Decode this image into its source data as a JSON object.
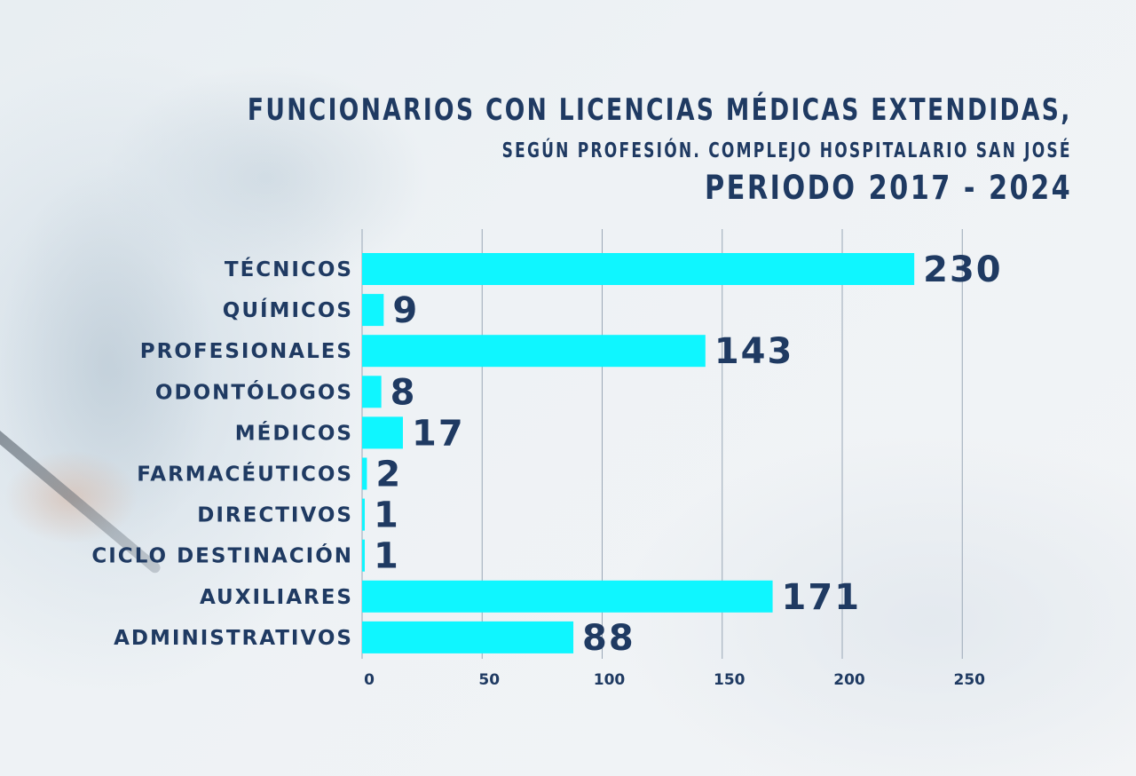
{
  "header": {
    "title_line1": "FUNCIONARIOS CON LICENCIAS MÉDICAS EXTENDIDAS,",
    "title_line2": "SEGÚN PROFESIÓN. COMPLEJO HOSPITALARIO SAN JOSÉ",
    "title_line3": "PERIODO 2017 - 2024"
  },
  "colors": {
    "bar": "#0ff6ff",
    "text": "#1f3a62",
    "grid": "#9aa7b6"
  },
  "chart_data": {
    "type": "bar",
    "orientation": "horizontal",
    "title": "FUNCIONARIOS CON LICENCIAS MÉDICAS EXTENDIDAS, SEGÚN PROFESIÓN. COMPLEJO HOSPITALARIO SAN JOSÉ PERIODO 2017 - 2024",
    "categories": [
      "TÉCNICOS",
      "QUÍMICOS",
      "PROFESIONALES",
      "ODONTÓLOGOS",
      "MÉDICOS",
      "FARMACÉUTICOS",
      "DIRECTIVOS",
      "CICLO DESTINACIÓN",
      "AUXILIARES",
      "ADMINISTRATIVOS"
    ],
    "values": [
      230,
      9,
      143,
      8,
      17,
      2,
      1,
      1,
      171,
      88
    ],
    "xticks": [
      0,
      50,
      100,
      150,
      200,
      250
    ],
    "xlim": [
      0,
      250
    ],
    "grid": true,
    "data_labels": true
  }
}
